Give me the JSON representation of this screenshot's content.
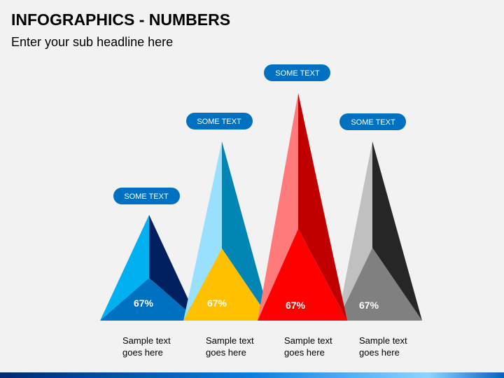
{
  "header": {
    "title": "INFOGRAPHICS - NUMBERS",
    "subtitle": "Enter your sub headline here"
  },
  "items": [
    {
      "tag": "SOME TEXT",
      "value_label": "67%",
      "caption": [
        "Sample text",
        "goes here"
      ]
    },
    {
      "tag": "SOME TEXT",
      "value_label": "67%",
      "caption": [
        "Sample text",
        "goes here"
      ]
    },
    {
      "tag": "SOME TEXT",
      "value_label": "67%",
      "caption": [
        "Sample text",
        "goes here"
      ]
    },
    {
      "tag": "SOME TEXT",
      "value_label": "67%",
      "caption": [
        "Sample text",
        "goes here"
      ]
    }
  ]
}
